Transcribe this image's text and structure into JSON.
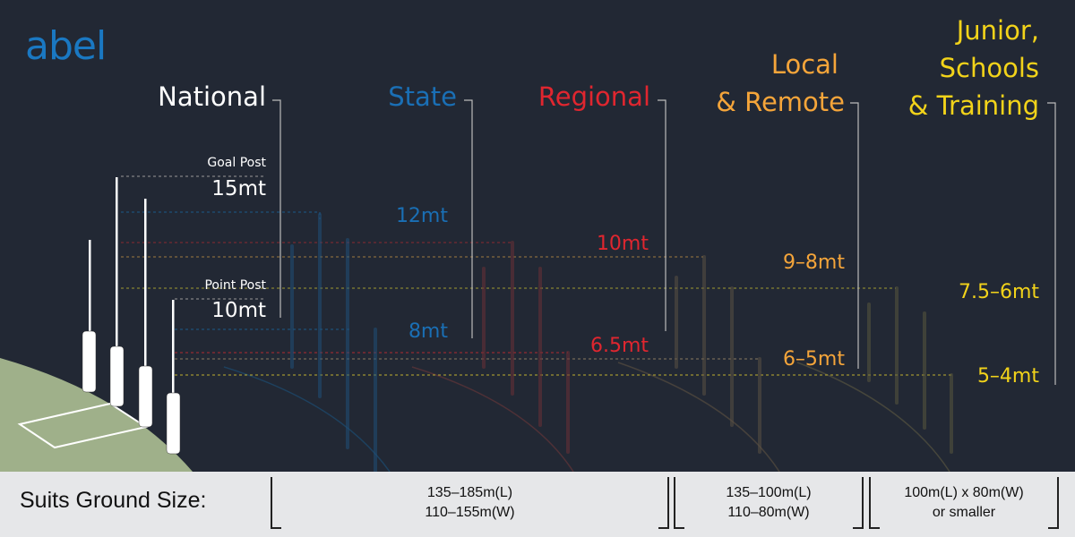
{
  "logo": "abel",
  "colors": {
    "background": "#222834",
    "national": "#ffffff",
    "state": "#1a6fb5",
    "regional": "#e0262f",
    "local": "#f5a53a",
    "junior": "#f2d31a",
    "ground": "#9fb08a"
  },
  "tiers": {
    "national": {
      "title": "National",
      "goal_label": "Goal Post",
      "goal_height": "15mt",
      "point_label": "Point Post",
      "point_height": "10mt"
    },
    "state": {
      "title": "State",
      "goal_height": "12mt",
      "point_height": "8mt"
    },
    "regional": {
      "title": "Regional",
      "goal_height": "10mt",
      "point_height": "6.5mt"
    },
    "local": {
      "title_line1": "Local",
      "title_line2": "& Remote",
      "goal_height": "9–8mt",
      "point_height": "6–5mt"
    },
    "junior": {
      "title_line1": "Junior,",
      "title_line2": "Schools",
      "title_line3": "& Training",
      "goal_height": "7.5–6mt",
      "point_height": "5–4mt"
    }
  },
  "ground_size": {
    "label": "Suits Ground Size:",
    "groups": [
      {
        "line1": "135–185m(L)",
        "line2": "110–155m(W)"
      },
      {
        "line1": "135–100m(L)",
        "line2": "110–80m(W)"
      },
      {
        "line1": "100m(L) x 80m(W)",
        "line2": "or smaller"
      }
    ]
  }
}
